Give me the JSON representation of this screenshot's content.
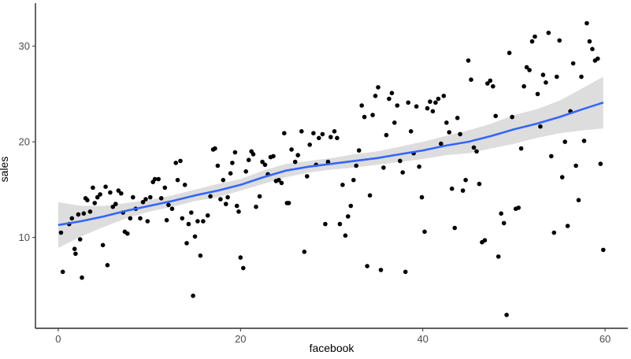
{
  "chart_data": {
    "type": "scatter",
    "xlabel": "facebook",
    "ylabel": "sales",
    "xlim": [
      -2.5,
      62.5
    ],
    "ylim": [
      0.5,
      34.5
    ],
    "x_ticks": [
      0,
      20,
      40,
      60
    ],
    "y_ticks": [
      10,
      20,
      30
    ],
    "grid": false,
    "colors": {
      "points": "#000000",
      "smooth_line": "#3366FF",
      "ribbon": "#d9d9d9",
      "axis": "#000000"
    },
    "points": [
      [
        0.3,
        10.5
      ],
      [
        0.5,
        6.4
      ],
      [
        1.2,
        11.4
      ],
      [
        1.5,
        12.0
      ],
      [
        1.8,
        8.8
      ],
      [
        1.9,
        8.3
      ],
      [
        2.2,
        12.4
      ],
      [
        2.4,
        9.8
      ],
      [
        2.6,
        5.8
      ],
      [
        2.8,
        12.5
      ],
      [
        3.0,
        14.1
      ],
      [
        3.2,
        13.9
      ],
      [
        3.5,
        12.7
      ],
      [
        3.8,
        15.2
      ],
      [
        4.0,
        13.6
      ],
      [
        4.3,
        14.2
      ],
      [
        4.6,
        14.5
      ],
      [
        4.9,
        9.2
      ],
      [
        5.2,
        15.3
      ],
      [
        5.4,
        7.1
      ],
      [
        5.7,
        14.7
      ],
      [
        6.0,
        13.2
      ],
      [
        6.3,
        13.5
      ],
      [
        6.6,
        14.9
      ],
      [
        6.9,
        14.6
      ],
      [
        7.1,
        12.6
      ],
      [
        7.3,
        10.6
      ],
      [
        7.6,
        10.4
      ],
      [
        7.9,
        12.0
      ],
      [
        8.2,
        14.2
      ],
      [
        8.5,
        13.0
      ],
      [
        9.0,
        12.0
      ],
      [
        9.3,
        13.7
      ],
      [
        9.6,
        14.0
      ],
      [
        9.8,
        11.7
      ],
      [
        10.1,
        14.2
      ],
      [
        10.4,
        15.8
      ],
      [
        10.6,
        16.1
      ],
      [
        11.0,
        16.1
      ],
      [
        11.3,
        14.1
      ],
      [
        11.7,
        15.2
      ],
      [
        11.9,
        11.8
      ],
      [
        12.1,
        13.4
      ],
      [
        12.5,
        13.0
      ],
      [
        12.9,
        17.8
      ],
      [
        13.1,
        16.0
      ],
      [
        13.4,
        18.0
      ],
      [
        13.6,
        12.0
      ],
      [
        13.9,
        15.5
      ],
      [
        14.1,
        9.4
      ],
      [
        14.3,
        11.4
      ],
      [
        14.6,
        12.6
      ],
      [
        14.8,
        3.9
      ],
      [
        15.0,
        10.1
      ],
      [
        15.3,
        11.7
      ],
      [
        15.6,
        8.1
      ],
      [
        15.9,
        11.7
      ],
      [
        16.4,
        12.3
      ],
      [
        16.7,
        14.3
      ],
      [
        17.0,
        19.2
      ],
      [
        17.2,
        19.3
      ],
      [
        17.5,
        17.5
      ],
      [
        17.8,
        14.0
      ],
      [
        18.1,
        16.0
      ],
      [
        18.4,
        13.5
      ],
      [
        18.6,
        14.2
      ],
      [
        18.9,
        16.7
      ],
      [
        19.1,
        17.8
      ],
      [
        19.4,
        18.9
      ],
      [
        19.6,
        13.3
      ],
      [
        19.8,
        12.7
      ],
      [
        20.0,
        7.9
      ],
      [
        20.3,
        6.8
      ],
      [
        20.6,
        16.9
      ],
      [
        20.9,
        18.1
      ],
      [
        21.2,
        19.0
      ],
      [
        21.4,
        18.7
      ],
      [
        21.7,
        13.2
      ],
      [
        22.1,
        14.3
      ],
      [
        22.4,
        17.9
      ],
      [
        22.7,
        17.6
      ],
      [
        23.0,
        16.6
      ],
      [
        23.3,
        18.4
      ],
      [
        23.6,
        18.5
      ],
      [
        23.9,
        15.9
      ],
      [
        24.2,
        16.0
      ],
      [
        24.5,
        15.7
      ],
      [
        24.8,
        20.9
      ],
      [
        25.1,
        13.6
      ],
      [
        25.3,
        13.6
      ],
      [
        25.6,
        19.2
      ],
      [
        26.0,
        17.9
      ],
      [
        26.3,
        18.6
      ],
      [
        26.7,
        21.1
      ],
      [
        27.0,
        8.5
      ],
      [
        27.3,
        16.4
      ],
      [
        27.6,
        19.7
      ],
      [
        28.0,
        20.9
      ],
      [
        28.3,
        17.6
      ],
      [
        28.6,
        20.4
      ],
      [
        29.0,
        20.8
      ],
      [
        29.3,
        11.4
      ],
      [
        29.6,
        17.9
      ],
      [
        29.9,
        20.5
      ],
      [
        30.3,
        21.1
      ],
      [
        30.6,
        20.4
      ],
      [
        30.9,
        11.4
      ],
      [
        31.2,
        15.5
      ],
      [
        31.5,
        10.2
      ],
      [
        31.8,
        12.2
      ],
      [
        32.1,
        13.3
      ],
      [
        32.4,
        16.0
      ],
      [
        32.7,
        17.5
      ],
      [
        33.0,
        19.1
      ],
      [
        33.3,
        23.8
      ],
      [
        33.6,
        22.6
      ],
      [
        33.9,
        7.0
      ],
      [
        34.2,
        14.4
      ],
      [
        34.5,
        22.8
      ],
      [
        34.8,
        24.8
      ],
      [
        35.1,
        25.7
      ],
      [
        35.4,
        6.6
      ],
      [
        35.7,
        17.3
      ],
      [
        36.0,
        20.7
      ],
      [
        36.3,
        24.5
      ],
      [
        36.6,
        25.1
      ],
      [
        36.9,
        22.0
      ],
      [
        37.2,
        23.8
      ],
      [
        37.5,
        18.0
      ],
      [
        37.8,
        16.8
      ],
      [
        38.1,
        6.4
      ],
      [
        38.4,
        24.1
      ],
      [
        38.7,
        21.1
      ],
      [
        39.0,
        18.8
      ],
      [
        39.3,
        23.7
      ],
      [
        39.6,
        17.4
      ],
      [
        39.9,
        14.2
      ],
      [
        40.2,
        10.6
      ],
      [
        40.5,
        23.5
      ],
      [
        40.8,
        24.2
      ],
      [
        41.1,
        23.2
      ],
      [
        41.4,
        24.1
      ],
      [
        41.7,
        24.5
      ],
      [
        42.0,
        19.8
      ],
      [
        42.3,
        24.8
      ],
      [
        42.6,
        22.0
      ],
      [
        42.9,
        21.0
      ],
      [
        43.2,
        15.1
      ],
      [
        43.5,
        11.0
      ],
      [
        43.8,
        22.5
      ],
      [
        44.1,
        20.8
      ],
      [
        44.4,
        14.9
      ],
      [
        44.7,
        16.0
      ],
      [
        45.0,
        28.5
      ],
      [
        45.3,
        26.5
      ],
      [
        45.6,
        19.4
      ],
      [
        45.9,
        19.0
      ],
      [
        46.2,
        15.6
      ],
      [
        46.5,
        9.5
      ],
      [
        46.8,
        9.7
      ],
      [
        47.1,
        26.1
      ],
      [
        47.4,
        26.4
      ],
      [
        47.7,
        25.8
      ],
      [
        48.0,
        22.7
      ],
      [
        48.3,
        8.0
      ],
      [
        48.6,
        12.5
      ],
      [
        48.9,
        11.5
      ],
      [
        49.2,
        1.9
      ],
      [
        49.5,
        29.3
      ],
      [
        49.8,
        22.6
      ],
      [
        50.2,
        13.0
      ],
      [
        50.5,
        13.1
      ],
      [
        50.8,
        19.3
      ],
      [
        51.1,
        25.8
      ],
      [
        51.4,
        27.8
      ],
      [
        51.7,
        27.5
      ],
      [
        52.0,
        30.5
      ],
      [
        52.3,
        31.0
      ],
      [
        52.6,
        25.0
      ],
      [
        52.9,
        21.6
      ],
      [
        53.2,
        27.0
      ],
      [
        53.5,
        26.2
      ],
      [
        53.8,
        31.4
      ],
      [
        54.1,
        18.5
      ],
      [
        54.4,
        10.5
      ],
      [
        54.7,
        26.8
      ],
      [
        55.0,
        30.6
      ],
      [
        55.3,
        16.3
      ],
      [
        55.6,
        20.0
      ],
      [
        55.9,
        11.2
      ],
      [
        56.2,
        23.2
      ],
      [
        56.5,
        28.2
      ],
      [
        56.8,
        17.5
      ],
      [
        57.1,
        13.9
      ],
      [
        57.4,
        26.8
      ],
      [
        57.7,
        20.1
      ],
      [
        58.0,
        32.4
      ],
      [
        58.3,
        30.5
      ],
      [
        58.6,
        29.7
      ],
      [
        58.9,
        28.5
      ],
      [
        59.2,
        28.7
      ],
      [
        59.5,
        17.7
      ],
      [
        59.8,
        8.7
      ]
    ],
    "smooth": {
      "x": [
        0,
        2.5,
        5,
        7.5,
        10,
        12.5,
        15,
        17.5,
        20,
        22.5,
        25,
        27.5,
        30,
        32.5,
        35,
        37.5,
        40,
        42.5,
        45,
        47.5,
        50,
        52.5,
        55,
        57.5,
        59.8
      ],
      "y": [
        11.3,
        11.7,
        12.2,
        12.8,
        13.3,
        13.8,
        14.4,
        14.9,
        15.5,
        16.3,
        17.0,
        17.4,
        17.7,
        18.0,
        18.3,
        18.7,
        19.1,
        19.6,
        20.0,
        20.6,
        21.3,
        21.9,
        22.6,
        23.4,
        24.1
      ],
      "lower": [
        8.9,
        10.1,
        11.1,
        12.0,
        12.7,
        13.2,
        13.8,
        14.2,
        14.9,
        15.6,
        16.3,
        16.8,
        17.1,
        17.3,
        17.6,
        17.9,
        18.2,
        18.6,
        18.8,
        19.3,
        19.8,
        20.4,
        20.9,
        21.2,
        21.4
      ],
      "upper": [
        13.7,
        13.3,
        13.3,
        13.6,
        13.9,
        14.4,
        15.0,
        15.6,
        16.1,
        17.0,
        17.7,
        18.0,
        18.3,
        18.7,
        19.0,
        19.5,
        20.0,
        20.6,
        21.2,
        21.9,
        22.8,
        23.4,
        24.3,
        25.6,
        26.8
      ]
    }
  }
}
